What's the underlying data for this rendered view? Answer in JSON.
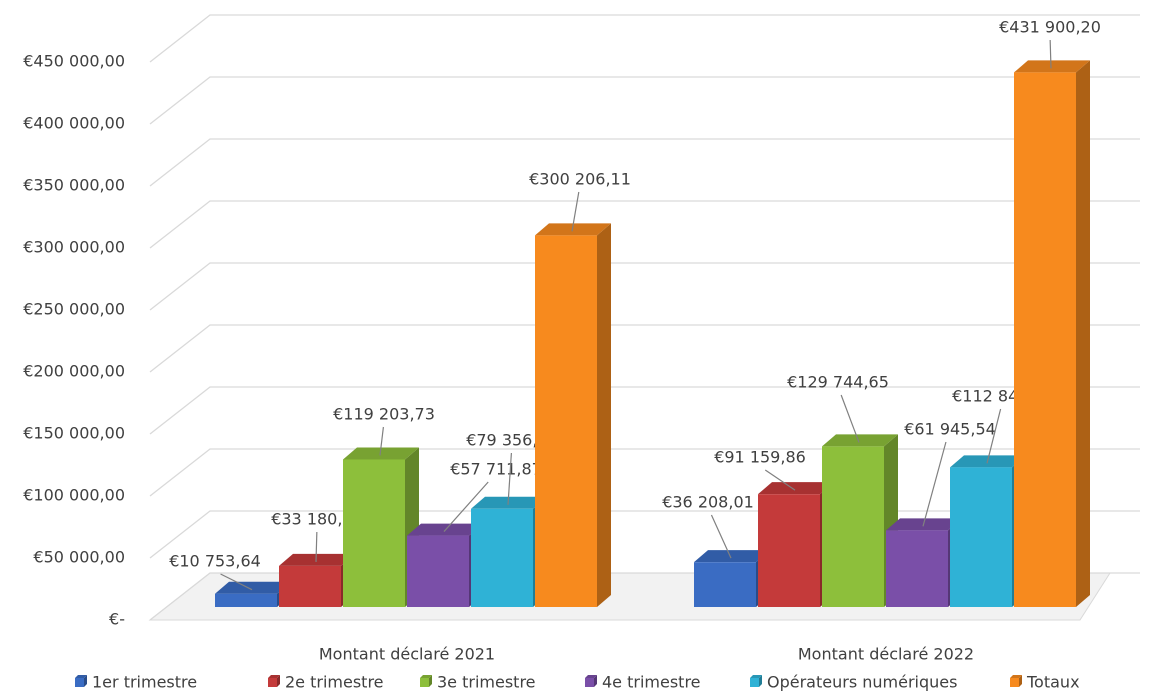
{
  "chart_data": {
    "type": "bar",
    "categories": [
      "Montant déclaré 2021",
      "Montant déclaré 2022"
    ],
    "series": [
      {
        "name": "1er trimestre",
        "color": "#3a6cc3",
        "values": [
          10753.64,
          36208.01
        ],
        "value_labels": [
          "€10 753,64",
          "€36 208,01"
        ]
      },
      {
        "name": "2e trimestre",
        "color": "#c43a3a",
        "values": [
          33180.41,
          91159.86
        ],
        "value_labels": [
          "€33 180,41",
          "€91 159,86"
        ]
      },
      {
        "name": "3e trimestre",
        "color": "#8dbf3b",
        "values": [
          119203.73,
          129744.65
        ],
        "value_labels": [
          "€119 203,73",
          "€129 744,65"
        ]
      },
      {
        "name": "4e trimestre",
        "color": "#7a4fa8",
        "values": [
          57711.87,
          61945.54
        ],
        "value_labels": [
          "€57 711,87",
          "€61 945,54"
        ]
      },
      {
        "name": "Opérateurs numériques",
        "color": "#2fb2d6",
        "values": [
          79356.46,
          112842.14
        ],
        "value_labels": [
          "€79 356,46",
          "€112 842,14"
        ]
      },
      {
        "name": "Totaux",
        "color": "#f78a1e",
        "values": [
          300206.11,
          431900.2
        ],
        "value_labels": [
          "€300 206,11",
          "€431 900,20"
        ]
      }
    ],
    "ylim": [
      0,
      450000
    ],
    "yticks": [
      {
        "value": 0,
        "label": "€-"
      },
      {
        "value": 50000,
        "label": "€50 000,00"
      },
      {
        "value": 100000,
        "label": "€100 000,00"
      },
      {
        "value": 150000,
        "label": "€150 000,00"
      },
      {
        "value": 200000,
        "label": "€200 000,00"
      },
      {
        "value": 250000,
        "label": "€250 000,00"
      },
      {
        "value": 300000,
        "label": "€300 000,00"
      },
      {
        "value": 350000,
        "label": "€350 000,00"
      },
      {
        "value": 400000,
        "label": "€400 000,00"
      },
      {
        "value": 450000,
        "label": "€450 000,00"
      }
    ],
    "grid": true,
    "legend": "bottom"
  }
}
